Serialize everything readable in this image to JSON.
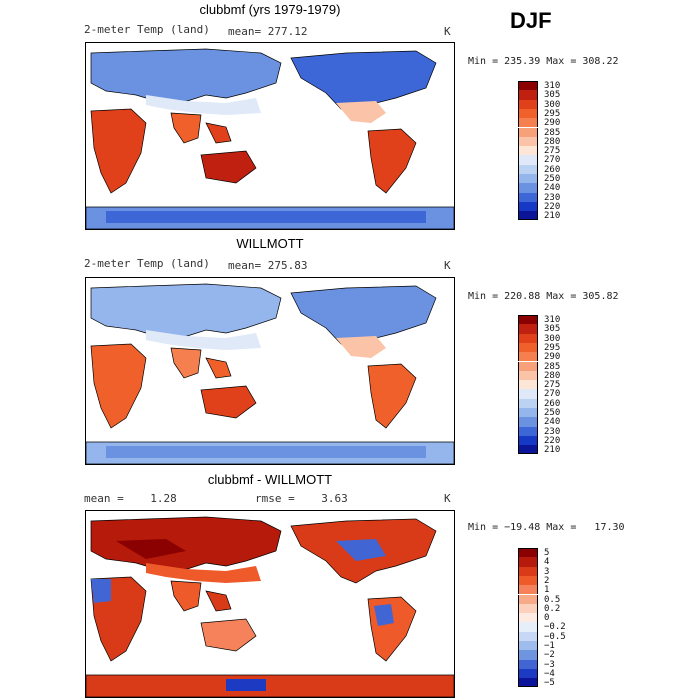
{
  "season": "DJF",
  "panels": [
    {
      "title": "clubbmf (yrs 1979-1979)",
      "left_label": "2-meter Temp (land)",
      "mid_label": "mean= 277.12",
      "unit": "K",
      "stats": "Min = 235.39 Max = 308.22",
      "colorbar_labels": [
        "310",
        "305",
        "300",
        "295",
        "290",
        "285",
        "280",
        "275",
        "270",
        "260",
        "250",
        "240",
        "230",
        "220",
        "210"
      ],
      "colorbar_colors": [
        "#8b0000",
        "#c0200f",
        "#e0401a",
        "#f0602a",
        "#f57f4e",
        "#f8a07a",
        "#fbc4a8",
        "#fde6d6",
        "#dfe9f8",
        "#bcd2f3",
        "#94b6ec",
        "#6a92e0",
        "#3d66d6",
        "#1738c4",
        "#0a159a"
      ]
    },
    {
      "title": "WILLMOTT",
      "left_label": "2-meter Temp (land)",
      "mid_label": "mean= 275.83",
      "unit": "K",
      "stats": "Min = 220.88 Max = 305.82",
      "colorbar_labels": [
        "310",
        "305",
        "300",
        "295",
        "290",
        "285",
        "280",
        "275",
        "270",
        "260",
        "250",
        "240",
        "230",
        "220",
        "210"
      ],
      "colorbar_colors": [
        "#8b0000",
        "#c0200f",
        "#e0401a",
        "#f0602a",
        "#f57f4e",
        "#f8a07a",
        "#fbc4a8",
        "#fde6d6",
        "#dfe9f8",
        "#bcd2f3",
        "#94b6ec",
        "#6a92e0",
        "#3d66d6",
        "#1738c4",
        "#0a159a"
      ]
    },
    {
      "title": "clubbmf - WILLMOTT",
      "left_label": "mean =    1.28",
      "mid_label": "rmse =    3.63",
      "unit": "K",
      "stats": "Min = −19.48 Max =   17.30",
      "colorbar_labels": [
        "5",
        "4",
        "3",
        "2",
        "1",
        "0.5",
        "0.2",
        "0",
        "−0.2",
        "−0.5",
        "−1",
        "−2",
        "−3",
        "−4",
        "−5"
      ],
      "colorbar_colors": [
        "#8b0000",
        "#b51a0a",
        "#d93a18",
        "#ef5a2a",
        "#f5825a",
        "#f8aa88",
        "#fbd0bc",
        "#fdebe2",
        "#e6eefa",
        "#c6d8f4",
        "#9ebcec",
        "#6f95e0",
        "#4166d3",
        "#1c3ac2",
        "#0a139a"
      ]
    }
  ]
}
